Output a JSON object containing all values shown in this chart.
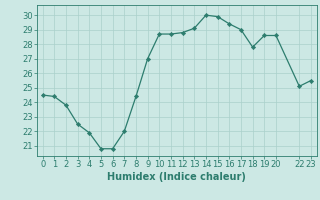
{
  "x": [
    0,
    1,
    2,
    3,
    4,
    5,
    6,
    7,
    8,
    9,
    10,
    11,
    12,
    13,
    14,
    15,
    16,
    17,
    18,
    19,
    20,
    22,
    23
  ],
  "y": [
    24.5,
    24.4,
    23.8,
    22.5,
    21.9,
    20.8,
    20.8,
    22.0,
    24.4,
    27.0,
    28.7,
    28.7,
    28.8,
    29.1,
    30.0,
    29.9,
    29.4,
    29.0,
    27.8,
    28.6,
    28.6,
    25.1,
    25.5
  ],
  "line_color": "#2d7d6e",
  "marker_color": "#2d7d6e",
  "bg_color": "#cce8e4",
  "grid_color": "#aad0cb",
  "xlabel": "Humidex (Indice chaleur)",
  "xticks": [
    0,
    1,
    2,
    3,
    4,
    5,
    6,
    7,
    8,
    9,
    10,
    11,
    12,
    13,
    14,
    15,
    16,
    17,
    18,
    19,
    20,
    22,
    23
  ],
  "xtick_labels": [
    "0",
    "1",
    "2",
    "3",
    "4",
    "5",
    "6",
    "7",
    "8",
    "9",
    "10",
    "11",
    "12",
    "13",
    "14",
    "15",
    "16",
    "17",
    "18",
    "19",
    "20",
    "22",
    "23"
  ],
  "yticks": [
    21,
    22,
    23,
    24,
    25,
    26,
    27,
    28,
    29,
    30
  ],
  "ylim": [
    20.3,
    30.7
  ],
  "xlim": [
    -0.5,
    23.5
  ],
  "tick_fontsize": 6.0,
  "axis_fontsize": 7.0
}
